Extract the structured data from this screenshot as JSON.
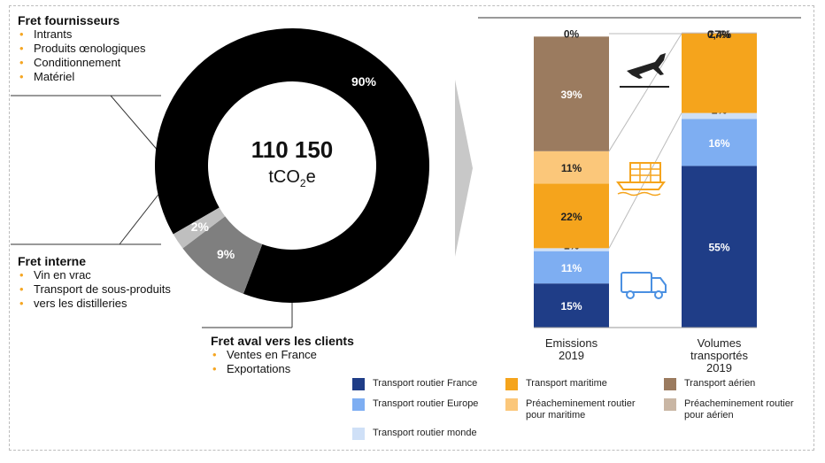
{
  "blocks": {
    "fournisseurs": {
      "title": "Fret fournisseurs",
      "items": [
        "Intrants",
        "Produits œnologiques",
        "Conditionnement",
        "Matériel"
      ]
    },
    "interne": {
      "title": "Fret interne",
      "items": [
        "Vin en vrac",
        "Transport de sous-produits",
        "vers les distilleries"
      ]
    },
    "aval": {
      "title": "Fret aval vers les clients",
      "items": [
        "Ventes en France",
        "Exportations"
      ]
    }
  },
  "donut": {
    "center_value": "110 150",
    "center_unit_prefix": "tCO",
    "center_unit_sub": "2",
    "center_unit_suffix": "e"
  },
  "chart_data": [
    {
      "type": "pie",
      "labels": [
        "Fret aval vers les clients",
        "Fret fournisseurs",
        "Fret interne"
      ],
      "values": [
        90,
        9,
        2
      ],
      "data_labels": [
        "90%",
        "9%",
        "2%"
      ],
      "colors": [
        "#000000",
        "#7f7f7f",
        "#bfbfbf"
      ]
    },
    {
      "type": "bar",
      "stacked": true,
      "categories": [
        "Emissions 2019",
        "Volumes transportés 2019"
      ],
      "category_lines": [
        [
          "Emissions",
          "2019"
        ],
        [
          "Volumes",
          "transportés",
          "2019"
        ]
      ],
      "ylim": [
        0,
        100
      ],
      "series": [
        {
          "name": "Transport routier France",
          "color": "#1f3d87",
          "values": [
            15,
            55
          ],
          "labels": [
            "15%",
            "55%"
          ]
        },
        {
          "name": "Transport routier Europe",
          "color": "#7eaef2",
          "values": [
            11,
            16
          ],
          "labels": [
            "11%",
            "16%"
          ]
        },
        {
          "name": "Transport routier monde",
          "color": "#cfe0f7",
          "values": [
            1,
            2
          ],
          "labels": [
            "1%",
            "2%"
          ]
        },
        {
          "name": "Transport maritime",
          "color": "#f5a41c",
          "values": [
            22,
            27
          ],
          "labels": [
            "22%",
            "27%"
          ]
        },
        {
          "name": "Préacheminement routier pour maritime",
          "color": "#fbc77a",
          "values": [
            11,
            0
          ],
          "labels": [
            "11%",
            ""
          ]
        },
        {
          "name": "Transport aérien",
          "color": "#9b7b5f",
          "values": [
            39,
            0
          ],
          "labels": [
            "39%",
            ""
          ]
        },
        {
          "name": "Préacheminement routier pour aérien",
          "color": "#c9b6a4",
          "values": [
            0,
            0.4
          ],
          "labels": [
            "0%",
            "0,4%"
          ]
        }
      ],
      "legend": [
        {
          "label": [
            "Transport routier France"
          ],
          "color": "#1f3d87"
        },
        {
          "label": [
            "Transport maritime"
          ],
          "color": "#f5a41c"
        },
        {
          "label": [
            "Transport aérien"
          ],
          "color": "#9b7b5f"
        },
        {
          "label": [
            "Transport routier Europe"
          ],
          "color": "#7eaef2"
        },
        {
          "label": [
            "Préacheminement routier",
            "pour maritime"
          ],
          "color": "#fbc77a"
        },
        {
          "label": [
            "Préacheminement routier",
            "pour aérien"
          ],
          "color": "#c9b6a4"
        },
        {
          "label": [
            "Transport routier monde"
          ],
          "color": "#cfe0f7"
        }
      ]
    }
  ],
  "icons": [
    "airplane-icon",
    "ship-icon",
    "truck-icon"
  ]
}
